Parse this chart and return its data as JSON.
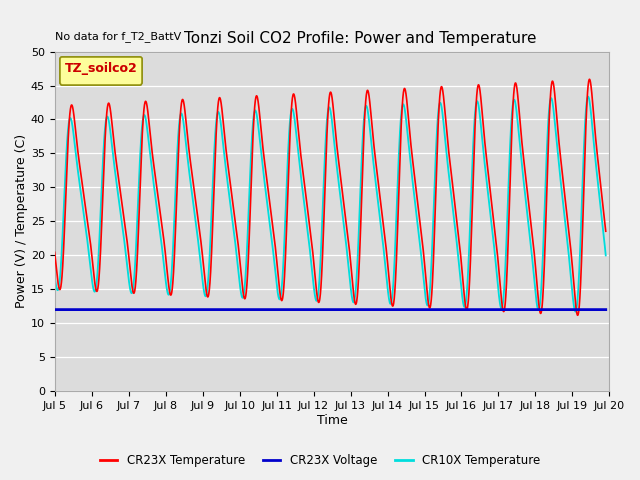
{
  "title": "Tonzi Soil CO2 Profile: Power and Temperature",
  "top_left_text": "No data for f_T2_BattV",
  "ylabel": "Power (V) / Temperature (C)",
  "xlabel": "Time",
  "ylim": [
    0,
    50
  ],
  "xlim": [
    5,
    20
  ],
  "xtick_labels": [
    "Jul 5",
    "Jul 6",
    "Jul 7",
    "Jul 8",
    "Jul 9",
    "Jul 10",
    "Jul 11",
    "Jul 12",
    "Jul 13",
    "Jul 14",
    "Jul 15",
    "Jul 16",
    "Jul 17",
    "Jul 18",
    "Jul 19",
    "Jul 20"
  ],
  "xtick_positions": [
    5,
    6,
    7,
    8,
    9,
    10,
    11,
    12,
    13,
    14,
    15,
    16,
    17,
    18,
    19,
    20
  ],
  "ytick_positions": [
    0,
    5,
    10,
    15,
    20,
    25,
    30,
    35,
    40,
    45,
    50
  ],
  "bg_color": "#dcdcdc",
  "fig_color": "#f0f0f0",
  "legend_box_label": "TZ_soilco2",
  "legend_box_color": "#ffff99",
  "legend_box_border": "#999900",
  "cr23x_temp_color": "#ff0000",
  "cr23x_volt_color": "#0000cc",
  "cr10x_temp_color": "#00dddd",
  "voltage_value": 12.0,
  "legend_labels": [
    "CR23X Temperature",
    "CR23X Voltage",
    "CR10X Temperature"
  ],
  "title_fontsize": 11,
  "axis_label_fontsize": 9,
  "tick_fontsize": 8,
  "note_fontsize": 8
}
